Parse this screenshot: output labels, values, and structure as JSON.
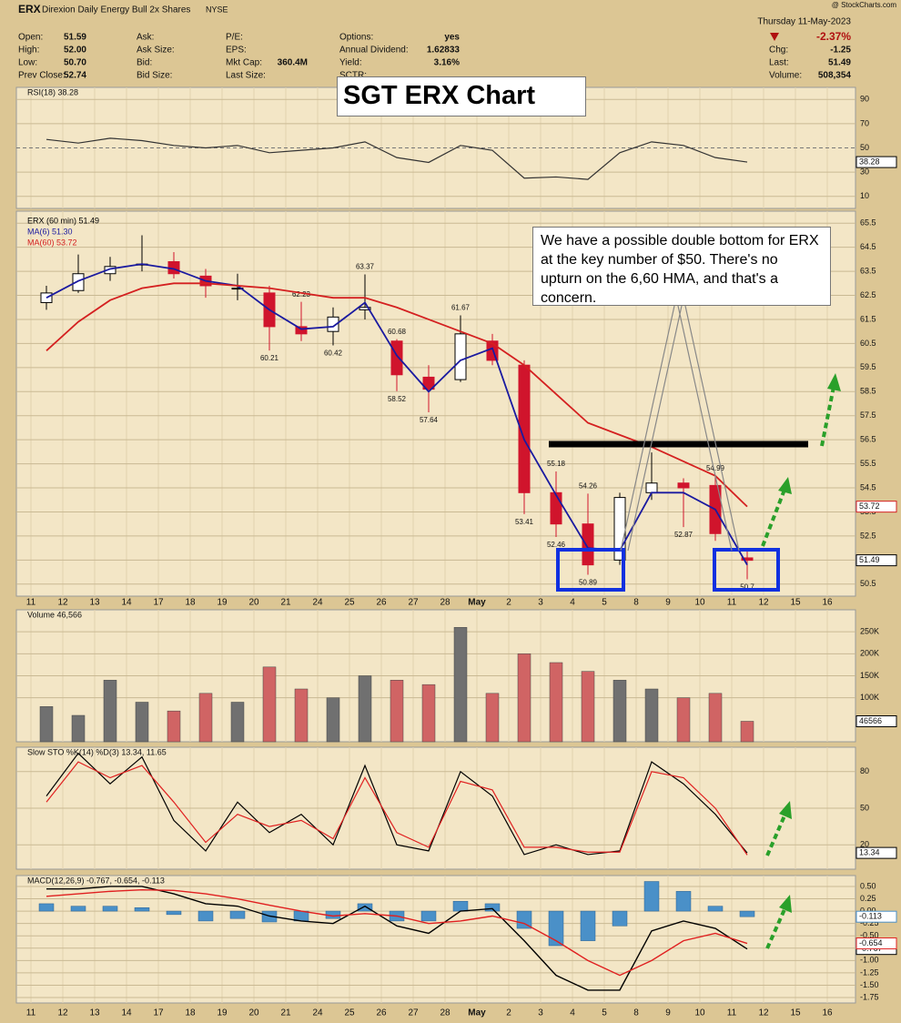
{
  "header": {
    "symbol": "ERX",
    "name": "Direxion Daily Energy Bull 2x Shares",
    "exchange": "NYSE",
    "watermark": "@ StockCharts.com",
    "columns": [
      [
        {
          "label": "Open:",
          "value": "51.59"
        },
        {
          "label": "High:",
          "value": "52.00"
        },
        {
          "label": "Low:",
          "value": "50.70"
        },
        {
          "label": "Prev Close:",
          "value": "52.74"
        }
      ],
      [
        {
          "label": "Ask:"
        },
        {
          "label": "Ask Size:"
        },
        {
          "label": "Bid:"
        },
        {
          "label": "Bid Size:"
        }
      ],
      [
        {
          "label": "P/E:"
        },
        {
          "label": "EPS:"
        },
        {
          "label": "Mkt Cap:",
          "value": "360.4M"
        },
        {
          "label": "Last Size:"
        }
      ],
      [
        {
          "label": "Options:",
          "value": "yes"
        },
        {
          "label": "Annual Dividend:",
          "value": "1.62833"
        },
        {
          "label": "Yield:",
          "value": "3.16%"
        },
        {
          "label": "SCTR:"
        }
      ]
    ],
    "date": "Thursday  11-May-2023",
    "change_pct": "-2.37%",
    "stats": [
      {
        "label": "Chg:",
        "value": "-1.25"
      },
      {
        "label": "Last:",
        "value": "51.49"
      },
      {
        "label": "Volume:",
        "value": "508,354"
      }
    ]
  },
  "chart_data": [
    {
      "type": "line",
      "title": "RSI(18) 38.28",
      "ylim": [
        0,
        100
      ],
      "yticks": [
        10,
        30,
        50,
        70,
        90
      ],
      "grid": true,
      "series": [
        {
          "color": "#333333",
          "values": [
            57,
            54,
            58,
            56,
            52,
            50,
            52,
            46,
            48,
            50,
            55,
            42,
            38,
            52,
            48,
            25,
            26,
            24,
            46,
            55,
            52,
            42,
            38.28,
            null,
            null,
            null
          ]
        }
      ]
    },
    {
      "type": "candlestick",
      "categories": [
        "11",
        "12",
        "13",
        "14",
        "17",
        "18",
        "19",
        "20",
        "21",
        "24",
        "25",
        "26",
        "27",
        "28",
        "May",
        "2",
        "3",
        "4",
        "5",
        "8",
        "9",
        "10",
        "11",
        "12",
        "15",
        "16"
      ],
      "ylim": [
        50,
        66
      ],
      "yticks": [
        50.5,
        51.5,
        52.5,
        53.5,
        54.5,
        55.5,
        56.5,
        57.5,
        58.5,
        59.5,
        60.5,
        61.5,
        62.5,
        63.5,
        64.5,
        65.5
      ],
      "grid": true,
      "series": [
        {
          "name": "ERX (60 min) 51.49",
          "up_color": "#000000",
          "down_color": "#d0142c",
          "open": [
            62.2,
            62.7,
            63.4,
            63.8,
            63.9,
            63.3,
            62.8,
            62.6,
            61.2,
            61.0,
            61.9,
            60.6,
            59.1,
            59.0,
            60.6,
            59.6,
            54.3,
            53.0,
            51.5,
            54.3,
            54.7,
            54.6,
            51.59,
            null,
            null,
            null
          ],
          "high": [
            62.9,
            64.2,
            64.1,
            65.0,
            64.3,
            63.6,
            63.4,
            62.9,
            62.23,
            62.0,
            63.37,
            60.68,
            59.6,
            61.67,
            60.9,
            59.8,
            55.18,
            54.26,
            54.3,
            55.97,
            54.9,
            54.99,
            52.0,
            null,
            null,
            null
          ],
          "low": [
            61.9,
            62.6,
            63.1,
            63.5,
            63.2,
            62.4,
            62.3,
            60.21,
            60.6,
            60.42,
            61.5,
            58.52,
            57.64,
            58.9,
            59.6,
            53.41,
            52.46,
            50.89,
            51.3,
            54.0,
            52.87,
            52.3,
            50.7,
            null,
            null,
            null
          ],
          "close": [
            62.6,
            63.4,
            63.7,
            63.8,
            63.4,
            62.9,
            62.8,
            61.2,
            60.9,
            61.6,
            62.0,
            59.2,
            58.6,
            60.9,
            59.8,
            54.3,
            53.0,
            51.3,
            54.1,
            54.7,
            54.5,
            52.6,
            51.49,
            null,
            null,
            null
          ]
        },
        {
          "name": "MA(6) 51.30",
          "color": "#1a1aa0",
          "values": [
            62.4,
            63.1,
            63.6,
            63.8,
            63.6,
            63.1,
            62.9,
            61.9,
            61.1,
            61.2,
            62.2,
            60.0,
            58.5,
            59.8,
            60.3,
            56.5,
            54.2,
            52.0,
            51.9,
            54.3,
            54.3,
            53.6,
            51.3,
            null,
            null,
            null
          ]
        },
        {
          "name": "MA(60) 53.72",
          "color": "#d42020",
          "values": [
            60.2,
            61.4,
            62.3,
            62.8,
            63.0,
            63.0,
            62.9,
            62.8,
            62.6,
            62.4,
            62.4,
            62.0,
            61.5,
            61.0,
            60.5,
            59.6,
            58.4,
            57.2,
            56.7,
            56.2,
            55.6,
            55.0,
            53.72,
            null,
            null,
            null
          ]
        }
      ],
      "annotations": [
        "SGT ERX Chart",
        "We have a possible double bottom for ERX at the key number of $50.  There's no upturn on the 6,60 HMA, and that's a concern."
      ]
    },
    {
      "type": "bar",
      "title": "Volume 46,566",
      "ylim": [
        0,
        300000
      ],
      "grid": true,
      "up_color": "#707070",
      "down_color": "#d06464",
      "yticks": [
        {
          "value": 100000,
          "label": "100K"
        },
        {
          "value": 150000,
          "label": "150K"
        },
        {
          "value": 200000,
          "label": "200K"
        },
        {
          "value": 250000,
          "label": "250K"
        }
      ],
      "series": [
        {
          "values": [
            80000,
            60000,
            140000,
            90000,
            70000,
            110000,
            90000,
            170000,
            120000,
            100000,
            150000,
            140000,
            130000,
            260000,
            110000,
            200000,
            180000,
            160000,
            140000,
            120000,
            100000,
            110000,
            46566,
            null,
            null,
            null
          ]
        }
      ]
    },
    {
      "type": "line",
      "title": "Slow STO %K(14) %D(3) 13.34, 11.65",
      "ylim": [
        0,
        100
      ],
      "yticks": [
        20,
        50,
        80
      ],
      "grid": true,
      "series": [
        {
          "color": "#000000",
          "values": [
            60,
            95,
            70,
            92,
            40,
            15,
            55,
            30,
            45,
            20,
            85,
            20,
            15,
            80,
            60,
            12,
            20,
            12,
            15,
            88,
            70,
            45,
            13.34,
            null,
            null,
            null
          ]
        },
        {
          "color": "#e02020",
          "values": [
            55,
            88,
            75,
            85,
            55,
            22,
            45,
            35,
            40,
            25,
            75,
            30,
            18,
            72,
            65,
            18,
            18,
            14,
            14,
            80,
            75,
            50,
            11.65,
            null,
            null,
            null
          ]
        }
      ]
    },
    {
      "type": "combo",
      "title": "MACD(12,26,9) -0.767, -0.654, -0.113",
      "ylim": [
        -1.86,
        0.72
      ],
      "grid": true,
      "yticks": [
        {
          "value": 0.5,
          "label": "0.50"
        },
        {
          "value": 0.25,
          "label": "0.25"
        },
        {
          "value": 0,
          "label": "0.00"
        },
        {
          "value": -0.25,
          "label": "-0.25"
        },
        {
          "value": -0.5,
          "label": "-0.50"
        },
        {
          "value": -0.75,
          "label": "-0.75"
        },
        {
          "value": -1,
          "label": "-1.00"
        },
        {
          "value": -1.25,
          "label": "-1.25"
        },
        {
          "value": -1.5,
          "label": "-1.50"
        },
        {
          "value": -1.75,
          "label": "-1.75"
        }
      ],
      "series": [
        {
          "style": "histogram",
          "color": "#4a90c8",
          "values": [
            0.15,
            0.1,
            0.1,
            0.07,
            -0.07,
            -0.2,
            -0.15,
            -0.22,
            -0.2,
            -0.15,
            0.15,
            -0.2,
            -0.2,
            0.2,
            0.15,
            -0.35,
            -0.7,
            -0.6,
            -0.3,
            0.6,
            0.4,
            0.1,
            -0.113,
            null,
            null,
            null
          ]
        },
        {
          "style": "line",
          "color": "#000000",
          "values": [
            0.45,
            0.45,
            0.5,
            0.5,
            0.35,
            0.15,
            0.1,
            -0.1,
            -0.2,
            -0.25,
            0.1,
            -0.3,
            -0.45,
            0.0,
            0.05,
            -0.6,
            -1.3,
            -1.6,
            -1.6,
            -0.4,
            -0.2,
            -0.35,
            -0.767,
            null,
            null,
            null
          ]
        },
        {
          "style": "line",
          "color": "#e02020",
          "values": [
            0.3,
            0.35,
            0.4,
            0.43,
            0.42,
            0.35,
            0.25,
            0.12,
            0.0,
            -0.1,
            -0.05,
            -0.1,
            -0.25,
            -0.2,
            -0.1,
            -0.25,
            -0.6,
            -1.0,
            -1.3,
            -1.0,
            -0.6,
            -0.45,
            -0.654,
            null,
            null,
            null
          ]
        }
      ]
    }
  ]
}
